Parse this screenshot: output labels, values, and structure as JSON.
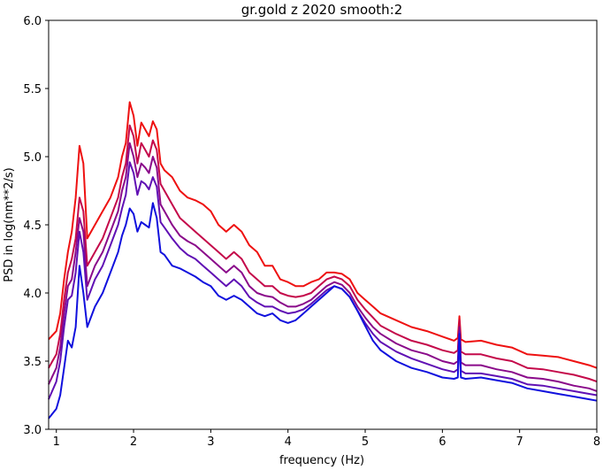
{
  "chart_data": {
    "type": "line",
    "title": "gr.gold z 2020 smooth:2",
    "xlabel": "frequency (Hz)",
    "ylabel": "PSD in log(nm**2/s)",
    "xlim": [
      0.9,
      8
    ],
    "ylim": [
      3.0,
      6.0
    ],
    "xticks": [
      "1",
      "2",
      "3",
      "4",
      "5",
      "6",
      "7",
      "8"
    ],
    "yticks": [
      "3.0",
      "3.5",
      "4.0",
      "4.5",
      "5.0",
      "5.5",
      "6.0"
    ],
    "grid": false,
    "series": [
      {
        "color": "#ee1111",
        "x": [
          0.9,
          1.0,
          1.05,
          1.1,
          1.15,
          1.2,
          1.25,
          1.3,
          1.35,
          1.4,
          1.5,
          1.6,
          1.7,
          1.8,
          1.85,
          1.9,
          1.95,
          2.0,
          2.05,
          2.1,
          2.15,
          2.2,
          2.25,
          2.3,
          2.35,
          2.4,
          2.5,
          2.6,
          2.7,
          2.8,
          2.9,
          3.0,
          3.1,
          3.2,
          3.3,
          3.4,
          3.5,
          3.6,
          3.7,
          3.8,
          3.9,
          4.0,
          4.1,
          4.2,
          4.3,
          4.4,
          4.5,
          4.6,
          4.7,
          4.8,
          4.9,
          5.0,
          5.1,
          5.2,
          5.4,
          5.6,
          5.8,
          6.0,
          6.15,
          6.2,
          6.22,
          6.24,
          6.3,
          6.5,
          6.7,
          6.9,
          7.1,
          7.3,
          7.5,
          7.7,
          7.9,
          8.0
        ],
        "y": [
          3.66,
          3.72,
          3.85,
          4.1,
          4.3,
          4.45,
          4.7,
          5.08,
          4.95,
          4.4,
          4.5,
          4.6,
          4.7,
          4.85,
          5.0,
          5.1,
          5.4,
          5.3,
          5.08,
          5.25,
          5.2,
          5.15,
          5.26,
          5.2,
          4.95,
          4.9,
          4.85,
          4.75,
          4.7,
          4.68,
          4.65,
          4.6,
          4.5,
          4.45,
          4.5,
          4.45,
          4.35,
          4.3,
          4.2,
          4.2,
          4.1,
          4.08,
          4.05,
          4.05,
          4.08,
          4.1,
          4.15,
          4.15,
          4.14,
          4.1,
          4.0,
          3.95,
          3.9,
          3.85,
          3.8,
          3.75,
          3.72,
          3.68,
          3.65,
          3.67,
          3.83,
          3.66,
          3.64,
          3.65,
          3.62,
          3.6,
          3.55,
          3.54,
          3.53,
          3.5,
          3.47,
          3.45
        ]
      },
      {
        "color": "#c4094a",
        "x": [
          0.9,
          1.0,
          1.05,
          1.1,
          1.15,
          1.2,
          1.25,
          1.3,
          1.35,
          1.4,
          1.5,
          1.6,
          1.7,
          1.8,
          1.85,
          1.9,
          1.95,
          2.0,
          2.05,
          2.1,
          2.15,
          2.2,
          2.25,
          2.3,
          2.35,
          2.4,
          2.5,
          2.6,
          2.7,
          2.8,
          2.9,
          3.0,
          3.1,
          3.2,
          3.3,
          3.4,
          3.5,
          3.6,
          3.7,
          3.8,
          3.9,
          4.0,
          4.1,
          4.2,
          4.3,
          4.4,
          4.5,
          4.6,
          4.7,
          4.8,
          4.9,
          5.0,
          5.1,
          5.2,
          5.4,
          5.6,
          5.8,
          6.0,
          6.15,
          6.2,
          6.22,
          6.24,
          6.3,
          6.5,
          6.7,
          6.9,
          7.1,
          7.3,
          7.5,
          7.7,
          7.9,
          8.0
        ],
        "y": [
          3.45,
          3.55,
          3.7,
          3.95,
          4.15,
          4.25,
          4.4,
          4.7,
          4.6,
          4.2,
          4.3,
          4.4,
          4.55,
          4.7,
          4.85,
          4.95,
          5.23,
          5.15,
          4.95,
          5.1,
          5.05,
          5.0,
          5.12,
          5.05,
          4.8,
          4.75,
          4.65,
          4.55,
          4.5,
          4.45,
          4.4,
          4.35,
          4.3,
          4.25,
          4.3,
          4.25,
          4.15,
          4.1,
          4.05,
          4.05,
          4.0,
          3.98,
          3.97,
          3.98,
          4.0,
          4.05,
          4.1,
          4.12,
          4.1,
          4.05,
          3.95,
          3.88,
          3.82,
          3.76,
          3.7,
          3.65,
          3.62,
          3.58,
          3.56,
          3.58,
          3.8,
          3.57,
          3.55,
          3.55,
          3.52,
          3.5,
          3.45,
          3.44,
          3.42,
          3.4,
          3.37,
          3.35
        ]
      },
      {
        "color": "#8a0a8a",
        "x": [
          0.9,
          1.0,
          1.05,
          1.1,
          1.15,
          1.2,
          1.25,
          1.3,
          1.35,
          1.4,
          1.5,
          1.6,
          1.7,
          1.8,
          1.85,
          1.9,
          1.95,
          2.0,
          2.05,
          2.1,
          2.15,
          2.2,
          2.25,
          2.3,
          2.35,
          2.4,
          2.5,
          2.6,
          2.7,
          2.8,
          2.9,
          3.0,
          3.1,
          3.2,
          3.3,
          3.4,
          3.5,
          3.6,
          3.7,
          3.8,
          3.9,
          4.0,
          4.1,
          4.2,
          4.3,
          4.4,
          4.5,
          4.6,
          4.7,
          4.8,
          4.9,
          5.0,
          5.1,
          5.2,
          5.4,
          5.6,
          5.8,
          6.0,
          6.15,
          6.2,
          6.22,
          6.24,
          6.3,
          6.5,
          6.7,
          6.9,
          7.1,
          7.3,
          7.5,
          7.7,
          7.9,
          8.0
        ],
        "y": [
          3.33,
          3.45,
          3.6,
          3.85,
          4.05,
          4.1,
          4.3,
          4.55,
          4.45,
          4.05,
          4.2,
          4.3,
          4.45,
          4.6,
          4.75,
          4.85,
          5.1,
          5.0,
          4.85,
          4.95,
          4.92,
          4.88,
          5.0,
          4.92,
          4.65,
          4.6,
          4.5,
          4.42,
          4.38,
          4.35,
          4.3,
          4.25,
          4.2,
          4.15,
          4.2,
          4.15,
          4.05,
          4.0,
          3.98,
          3.97,
          3.93,
          3.9,
          3.9,
          3.92,
          3.95,
          4.0,
          4.05,
          4.08,
          4.06,
          4.0,
          3.9,
          3.82,
          3.75,
          3.7,
          3.63,
          3.58,
          3.55,
          3.5,
          3.48,
          3.5,
          3.75,
          3.49,
          3.47,
          3.47,
          3.44,
          3.42,
          3.38,
          3.37,
          3.35,
          3.32,
          3.3,
          3.28
        ]
      },
      {
        "color": "#6010b4",
        "x": [
          0.9,
          1.0,
          1.05,
          1.1,
          1.15,
          1.2,
          1.25,
          1.3,
          1.35,
          1.4,
          1.5,
          1.6,
          1.7,
          1.8,
          1.85,
          1.9,
          1.95,
          2.0,
          2.05,
          2.1,
          2.15,
          2.2,
          2.25,
          2.3,
          2.35,
          2.4,
          2.5,
          2.6,
          2.7,
          2.8,
          2.9,
          3.0,
          3.1,
          3.2,
          3.3,
          3.4,
          3.5,
          3.6,
          3.7,
          3.8,
          3.9,
          4.0,
          4.1,
          4.2,
          4.3,
          4.4,
          4.5,
          4.6,
          4.7,
          4.8,
          4.9,
          5.0,
          5.1,
          5.2,
          5.4,
          5.6,
          5.8,
          6.0,
          6.15,
          6.2,
          6.22,
          6.24,
          6.3,
          6.5,
          6.7,
          6.9,
          7.1,
          7.3,
          7.5,
          7.7,
          7.9,
          8.0
        ],
        "y": [
          3.22,
          3.35,
          3.5,
          3.75,
          3.95,
          3.98,
          4.15,
          4.45,
          4.3,
          3.95,
          4.1,
          4.2,
          4.35,
          4.5,
          4.62,
          4.72,
          4.96,
          4.88,
          4.72,
          4.82,
          4.8,
          4.76,
          4.85,
          4.78,
          4.52,
          4.48,
          4.4,
          4.33,
          4.28,
          4.25,
          4.2,
          4.15,
          4.1,
          4.05,
          4.1,
          4.05,
          3.97,
          3.93,
          3.9,
          3.9,
          3.87,
          3.85,
          3.86,
          3.88,
          3.92,
          3.97,
          4.02,
          4.05,
          4.03,
          3.97,
          3.87,
          3.78,
          3.7,
          3.64,
          3.57,
          3.52,
          3.48,
          3.44,
          3.42,
          3.44,
          3.72,
          3.43,
          3.41,
          3.41,
          3.39,
          3.37,
          3.33,
          3.32,
          3.3,
          3.28,
          3.26,
          3.25
        ]
      },
      {
        "color": "#1010dd",
        "x": [
          0.9,
          1.0,
          1.05,
          1.1,
          1.15,
          1.2,
          1.25,
          1.3,
          1.35,
          1.4,
          1.5,
          1.6,
          1.7,
          1.8,
          1.85,
          1.9,
          1.95,
          2.0,
          2.05,
          2.1,
          2.15,
          2.2,
          2.25,
          2.3,
          2.35,
          2.4,
          2.5,
          2.6,
          2.7,
          2.8,
          2.9,
          3.0,
          3.1,
          3.2,
          3.3,
          3.4,
          3.5,
          3.6,
          3.7,
          3.8,
          3.9,
          4.0,
          4.1,
          4.2,
          4.3,
          4.4,
          4.5,
          4.6,
          4.7,
          4.8,
          4.9,
          5.0,
          5.1,
          5.2,
          5.4,
          5.6,
          5.8,
          6.0,
          6.15,
          6.2,
          6.22,
          6.24,
          6.3,
          6.5,
          6.7,
          6.9,
          7.1,
          7.3,
          7.5,
          7.7,
          7.9,
          8.0
        ],
        "y": [
          3.08,
          3.15,
          3.25,
          3.45,
          3.65,
          3.6,
          3.75,
          4.2,
          4.0,
          3.75,
          3.9,
          4.0,
          4.15,
          4.3,
          4.42,
          4.5,
          4.62,
          4.58,
          4.45,
          4.52,
          4.5,
          4.48,
          4.66,
          4.55,
          4.3,
          4.28,
          4.2,
          4.18,
          4.15,
          4.12,
          4.08,
          4.05,
          3.98,
          3.95,
          3.98,
          3.95,
          3.9,
          3.85,
          3.83,
          3.85,
          3.8,
          3.78,
          3.8,
          3.85,
          3.9,
          3.95,
          4.0,
          4.05,
          4.03,
          3.97,
          3.87,
          3.76,
          3.65,
          3.58,
          3.5,
          3.45,
          3.42,
          3.38,
          3.37,
          3.38,
          3.7,
          3.38,
          3.37,
          3.38,
          3.36,
          3.34,
          3.3,
          3.28,
          3.26,
          3.24,
          3.22,
          3.21
        ]
      }
    ]
  }
}
